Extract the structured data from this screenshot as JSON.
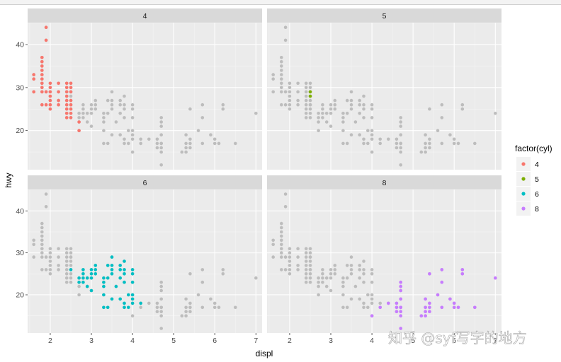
{
  "watermark": "知乎 @syf写字的地方",
  "chart_data": {
    "type": "scatter",
    "facet_by": "cyl",
    "facets": [
      "4",
      "5",
      "6",
      "8"
    ],
    "xlabel": "displ",
    "ylabel": "hwy",
    "xlim": [
      1.45,
      7.15
    ],
    "ylim": [
      10.9,
      45.1
    ],
    "xticks": [
      2,
      3,
      4,
      5,
      6,
      7
    ],
    "yticks": [
      20,
      30,
      40
    ],
    "grid": true,
    "background_points_color": "#bdbdbd",
    "legend": {
      "title": "factor(cyl)",
      "position": "right",
      "entries": [
        {
          "label": "4",
          "color": "#F8766D"
        },
        {
          "label": "5",
          "color": "#7CAE00"
        },
        {
          "label": "6",
          "color": "#00BFC4"
        },
        {
          "label": "8",
          "color": "#C77CFF"
        }
      ]
    },
    "series": [
      {
        "name": "4",
        "color": "#F8766D",
        "points": [
          [
            1.6,
            33
          ],
          [
            1.6,
            32
          ],
          [
            1.6,
            29
          ],
          [
            1.8,
            29
          ],
          [
            1.8,
            26
          ],
          [
            1.8,
            30
          ],
          [
            1.8,
            31
          ],
          [
            1.8,
            33
          ],
          [
            1.8,
            35
          ],
          [
            1.8,
            36
          ],
          [
            1.8,
            37
          ],
          [
            1.8,
            34
          ],
          [
            1.8,
            32
          ],
          [
            1.9,
            44
          ],
          [
            1.9,
            41
          ],
          [
            1.9,
            29
          ],
          [
            1.9,
            26
          ],
          [
            2.0,
            31
          ],
          [
            2.0,
            26
          ],
          [
            2.0,
            30
          ],
          [
            2.0,
            29
          ],
          [
            2.0,
            28
          ],
          [
            2.0,
            27
          ],
          [
            2.0,
            25
          ],
          [
            2.2,
            26
          ],
          [
            2.2,
            27
          ],
          [
            2.2,
            29
          ],
          [
            2.2,
            31
          ],
          [
            2.4,
            30
          ],
          [
            2.4,
            29
          ],
          [
            2.4,
            28
          ],
          [
            2.4,
            27
          ],
          [
            2.4,
            26
          ],
          [
            2.4,
            25
          ],
          [
            2.4,
            24
          ],
          [
            2.4,
            23
          ],
          [
            2.4,
            31
          ],
          [
            2.5,
            29
          ],
          [
            2.5,
            30
          ],
          [
            2.5,
            31
          ],
          [
            2.5,
            27
          ],
          [
            2.5,
            26
          ],
          [
            2.5,
            25
          ],
          [
            2.5,
            24
          ],
          [
            2.5,
            23
          ],
          [
            2.7,
            22
          ],
          [
            2.7,
            20
          ]
        ]
      },
      {
        "name": "5",
        "color": "#7CAE00",
        "points": [
          [
            2.5,
            28
          ],
          [
            2.5,
            29
          ]
        ]
      },
      {
        "name": "6",
        "color": "#00BFC4",
        "points": [
          [
            2.5,
            26
          ],
          [
            2.8,
            26
          ],
          [
            2.8,
            25
          ],
          [
            2.8,
            24
          ],
          [
            2.8,
            23
          ],
          [
            2.7,
            24
          ],
          [
            2.7,
            23
          ],
          [
            2.9,
            24
          ],
          [
            2.9,
            22
          ],
          [
            3.0,
            26
          ],
          [
            3.0,
            24
          ],
          [
            3.0,
            25
          ],
          [
            3.0,
            21
          ],
          [
            3.1,
            26
          ],
          [
            3.1,
            25
          ],
          [
            3.1,
            27
          ],
          [
            3.3,
            24
          ],
          [
            3.3,
            20
          ],
          [
            3.3,
            23
          ],
          [
            3.3,
            22
          ],
          [
            3.3,
            17
          ],
          [
            3.4,
            24
          ],
          [
            3.4,
            27
          ],
          [
            3.4,
            17
          ],
          [
            3.5,
            27
          ],
          [
            3.5,
            29
          ],
          [
            3.5,
            26
          ],
          [
            3.5,
            19
          ],
          [
            3.5,
            25
          ],
          [
            3.6,
            22
          ],
          [
            3.7,
            24
          ],
          [
            3.7,
            19
          ],
          [
            3.7,
            27
          ],
          [
            3.7,
            26
          ],
          [
            3.8,
            23
          ],
          [
            3.8,
            25
          ],
          [
            3.8,
            18
          ],
          [
            3.8,
            17
          ],
          [
            3.8,
            26
          ],
          [
            3.8,
            28
          ],
          [
            3.9,
            17
          ],
          [
            3.9,
            20
          ],
          [
            4.0,
            23
          ],
          [
            4.0,
            20
          ],
          [
            4.0,
            18
          ],
          [
            4.0,
            19
          ],
          [
            4.0,
            25
          ],
          [
            4.0,
            26
          ],
          [
            4.2,
            18
          ]
        ]
      },
      {
        "name": "8",
        "color": "#C77CFF",
        "points": [
          [
            4.0,
            15
          ],
          [
            4.2,
            17
          ],
          [
            4.4,
            18
          ],
          [
            4.6,
            17
          ],
          [
            4.6,
            18
          ],
          [
            4.6,
            16
          ],
          [
            4.7,
            17
          ],
          [
            4.7,
            15
          ],
          [
            4.7,
            12
          ],
          [
            4.7,
            19
          ],
          [
            4.7,
            23
          ],
          [
            4.7,
            22
          ],
          [
            4.7,
            21
          ],
          [
            4.7,
            16
          ],
          [
            4.7,
            17
          ],
          [
            5.2,
            15
          ],
          [
            5.3,
            17
          ],
          [
            5.3,
            16
          ],
          [
            5.3,
            19
          ],
          [
            5.3,
            15
          ],
          [
            5.4,
            17
          ],
          [
            5.4,
            18
          ],
          [
            5.4,
            25
          ],
          [
            5.4,
            16
          ],
          [
            5.6,
            20
          ],
          [
            5.7,
            23
          ],
          [
            5.7,
            26
          ],
          [
            5.7,
            17
          ],
          [
            5.9,
            19
          ],
          [
            6.0,
            17
          ],
          [
            6.0,
            18
          ],
          [
            6.1,
            17
          ],
          [
            6.2,
            25
          ],
          [
            6.2,
            26
          ],
          [
            6.5,
            17
          ],
          [
            7.0,
            24
          ]
        ]
      }
    ]
  }
}
